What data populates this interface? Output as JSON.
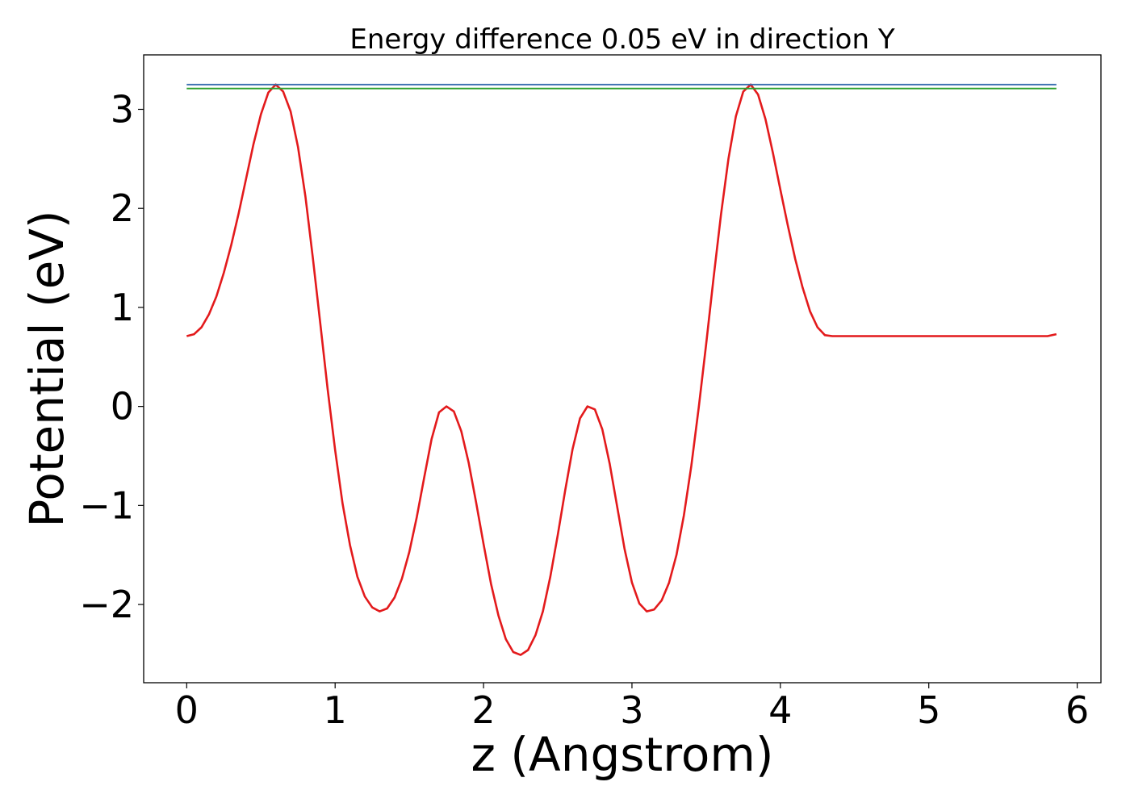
{
  "chart_data": {
    "type": "line",
    "title": "Energy difference 0.05 eV in direction Y",
    "xlabel": "z (Angstrom)",
    "ylabel": "Potential (eV)",
    "xlim": [
      -0.29,
      6.16
    ],
    "ylim": [
      -2.79,
      3.55
    ],
    "x_ticks": [
      0,
      1,
      2,
      3,
      4,
      5,
      6
    ],
    "x_tick_labels": [
      "0",
      "1",
      "2",
      "3",
      "4",
      "5",
      "6"
    ],
    "y_ticks": [
      -2,
      -1,
      0,
      1,
      2,
      3
    ],
    "y_tick_labels": [
      "−2",
      "−1",
      "0",
      "1",
      "2",
      "3"
    ],
    "grid": false,
    "legend": "none",
    "series": [
      {
        "color": "#e31a1c",
        "x": [
          0,
          0.05,
          0.1,
          0.15,
          0.2,
          0.25,
          0.3,
          0.35,
          0.4,
          0.45,
          0.5,
          0.55,
          0.6,
          0.65,
          0.7,
          0.75,
          0.8,
          0.85,
          0.9,
          0.95,
          1.0,
          1.05,
          1.1,
          1.15,
          1.2,
          1.25,
          1.3,
          1.35,
          1.4,
          1.45,
          1.5,
          1.55,
          1.6,
          1.65,
          1.7,
          1.75,
          1.8,
          1.85,
          1.9,
          1.95,
          2.0,
          2.05,
          2.1,
          2.15,
          2.2,
          2.25,
          2.3,
          2.35,
          2.4,
          2.45,
          2.5,
          2.55,
          2.6,
          2.65,
          2.7,
          2.75,
          2.8,
          2.85,
          2.9,
          2.95,
          3.0,
          3.05,
          3.1,
          3.15,
          3.2,
          3.25,
          3.3,
          3.35,
          3.4,
          3.45,
          3.5,
          3.55,
          3.6,
          3.65,
          3.7,
          3.75,
          3.8,
          3.85,
          3.9,
          3.95,
          4.0,
          4.05,
          4.1,
          4.15,
          4.2,
          4.25,
          4.3,
          4.35,
          4.4,
          4.45,
          4.5,
          4.55,
          4.6,
          4.65,
          4.7,
          4.75,
          4.8,
          4.85,
          4.9,
          4.95,
          5.0,
          5.05,
          5.1,
          5.15,
          5.2,
          5.25,
          5.3,
          5.35,
          5.4,
          5.45,
          5.5,
          5.55,
          5.6,
          5.65,
          5.7,
          5.75,
          5.8,
          5.86
        ],
        "y": [
          0.71,
          0.73,
          0.8,
          0.93,
          1.11,
          1.35,
          1.63,
          1.95,
          2.3,
          2.65,
          2.95,
          3.17,
          3.25,
          3.18,
          2.98,
          2.62,
          2.12,
          1.5,
          0.84,
          0.17,
          -0.44,
          -0.98,
          -1.4,
          -1.72,
          -1.92,
          -2.03,
          -2.07,
          -2.04,
          -1.93,
          -1.74,
          -1.47,
          -1.12,
          -0.72,
          -0.33,
          -0.06,
          0.0,
          -0.05,
          -0.25,
          -0.57,
          -0.97,
          -1.39,
          -1.79,
          -2.11,
          -2.35,
          -2.48,
          -2.51,
          -2.46,
          -2.31,
          -2.07,
          -1.72,
          -1.3,
          -0.85,
          -0.43,
          -0.12,
          0.0,
          -0.03,
          -0.23,
          -0.58,
          -1.01,
          -1.44,
          -1.78,
          -1.99,
          -2.07,
          -2.05,
          -1.96,
          -1.78,
          -1.5,
          -1.1,
          -0.6,
          -0.01,
          0.63,
          1.3,
          1.94,
          2.5,
          2.93,
          3.18,
          3.25,
          3.15,
          2.9,
          2.56,
          2.19,
          1.83,
          1.49,
          1.2,
          0.96,
          0.8,
          0.72,
          0.71,
          0.71,
          0.71,
          0.71,
          0.71,
          0.71,
          0.71,
          0.71,
          0.71,
          0.71,
          0.71,
          0.71,
          0.71,
          0.71,
          0.71,
          0.71,
          0.71,
          0.71,
          0.71,
          0.71,
          0.71,
          0.71,
          0.71,
          0.71,
          0.71,
          0.71,
          0.71,
          0.71,
          0.71,
          0.71,
          0.73
        ]
      },
      {
        "color": "#3a6fb0",
        "x": [
          0,
          5.86
        ],
        "y": [
          3.25,
          3.25
        ]
      },
      {
        "color": "#2ca02c",
        "x": [
          0,
          5.86
        ],
        "y": [
          3.21,
          3.21
        ]
      }
    ]
  }
}
